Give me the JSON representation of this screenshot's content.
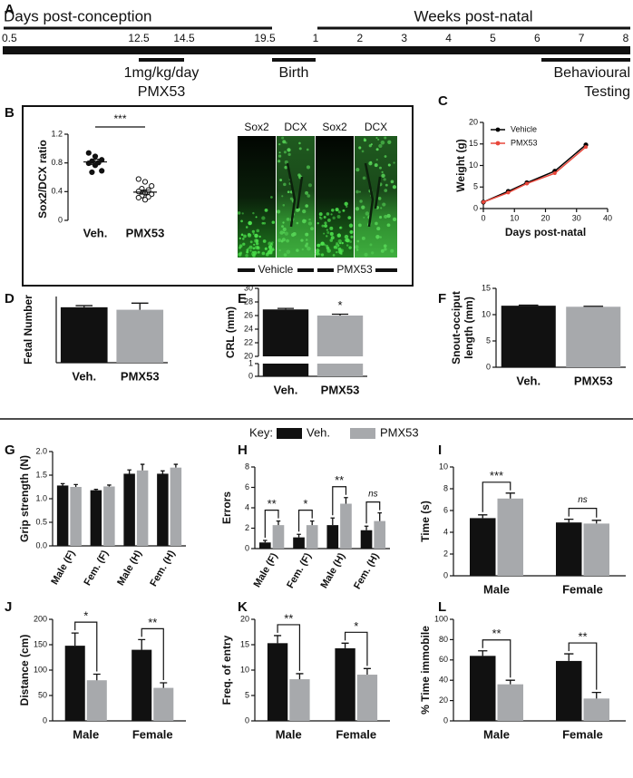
{
  "timeline": {
    "label": "A",
    "prenatal_title": "Days post-conception",
    "postnatal_title": "Weeks post-natal",
    "prenatal_ticks": [
      "0.5",
      "12.5",
      "14.5",
      "19.5"
    ],
    "postnatal_ticks": [
      "1",
      "2",
      "3",
      "4",
      "5",
      "6",
      "7",
      "8"
    ],
    "events": [
      {
        "lines": [
          "1mg/kg/day",
          "PMX53"
        ]
      },
      {
        "lines": [
          "Birth"
        ]
      },
      {
        "lines": [
          "Behavioural",
          "Testing"
        ]
      }
    ]
  },
  "micrographs": {
    "stains": [
      "Sox2",
      "DCX",
      "Sox2",
      "DCX"
    ],
    "groups": [
      "Vehicle",
      "PMX53"
    ]
  },
  "key": {
    "title": "Key:",
    "items": [
      {
        "name": "Veh.",
        "color": "#111111"
      },
      {
        "name": "PMX53",
        "color": "#a7a9ac"
      }
    ]
  },
  "chart_data": [
    {
      "type": "strip",
      "label": "B",
      "ylabel": "Sox2/DCX ratio",
      "categories": [
        "Veh.",
        "PMX53"
      ],
      "groups": [
        {
          "values": [
            0.98,
            0.93,
            0.88,
            0.86,
            0.84,
            0.83,
            0.8,
            0.72,
            0.7
          ],
          "mean": 0.85,
          "sem": 0.04,
          "marker": "filled"
        },
        {
          "values": [
            0.6,
            0.56,
            0.5,
            0.46,
            0.44,
            0.42,
            0.4,
            0.38,
            0.36,
            0.34,
            0.33,
            0.3
          ],
          "mean": 0.41,
          "sem": 0.03,
          "marker": "open"
        }
      ],
      "ylim": [
        0,
        1.2
      ],
      "yticks": [
        0,
        0.4,
        0.8,
        1.2
      ],
      "significance": "***"
    },
    {
      "type": "line",
      "label": "C",
      "xlabel": "Days post-natal",
      "ylabel": "Weight (g)",
      "x": [
        0,
        8,
        14,
        23,
        33
      ],
      "series": [
        {
          "name": "Vehicle",
          "color": "#000000",
          "values": [
            1.5,
            4.0,
            6.0,
            8.7,
            14.8
          ]
        },
        {
          "name": "PMX53",
          "color": "#e8473b",
          "values": [
            1.5,
            3.7,
            5.8,
            8.2,
            14.3
          ]
        }
      ],
      "xlim": [
        0,
        40
      ],
      "xticks": [
        0,
        10,
        20,
        30,
        40
      ],
      "ylim": [
        0,
        20
      ],
      "yticks": [
        0,
        5,
        10,
        15,
        20
      ],
      "legend": "top-left"
    },
    {
      "type": "bar",
      "label": "D",
      "ylabel": "Fetal Number",
      "categories": [
        "Veh.",
        "PMX53"
      ],
      "values": [
        6.7,
        6.4
      ],
      "errors": [
        0.2,
        0.8
      ],
      "colors": [
        "#111111",
        "#a7a9ac"
      ],
      "ylim": [
        0,
        8
      ]
    },
    {
      "type": "bar",
      "label": "E",
      "ylabel": "CRL (mm)",
      "categories": [
        "Veh.",
        "PMX53"
      ],
      "values": [
        26.9,
        26.0
      ],
      "errors": [
        0.15,
        0.2
      ],
      "colors": [
        "#111111",
        "#a7a9ac"
      ],
      "ylim": [
        20,
        30
      ],
      "yticks": [
        20,
        22,
        24,
        26,
        28,
        30
      ],
      "ylim_lower": [
        0,
        1
      ],
      "yticks_lower": [
        0,
        1
      ],
      "significance": "*"
    },
    {
      "type": "bar",
      "label": "F",
      "ylabel": [
        "Snout-occiput",
        "length (mm)"
      ],
      "categories": [
        "Veh.",
        "PMX53"
      ],
      "values": [
        11.7,
        11.5
      ],
      "errors": [
        0.1,
        0.1
      ],
      "colors": [
        "#111111",
        "#a7a9ac"
      ],
      "ylim": [
        0,
        15
      ],
      "yticks": [
        0,
        5,
        10,
        15
      ]
    },
    {
      "type": "grouped_bar",
      "label": "G",
      "ylabel": "Grip strength (N)",
      "categories": [
        "Male (F)",
        "Fem. (F)",
        "Male (H)",
        "Fem. (H)"
      ],
      "series": [
        {
          "values": [
            1.28,
            1.18,
            1.53,
            1.53
          ],
          "errors": [
            0.04,
            0.02,
            0.08,
            0.06
          ]
        },
        {
          "values": [
            1.25,
            1.26,
            1.6,
            1.66
          ],
          "errors": [
            0.05,
            0.03,
            0.13,
            0.07
          ]
        }
      ],
      "ylim": [
        0,
        2
      ],
      "yticks": [
        {
          "value": 0,
          "label": "0.0"
        },
        0.5,
        {
          "value": 1,
          "label": "1.0"
        },
        1.5,
        {
          "value": 2,
          "label": "2.0"
        }
      ]
    },
    {
      "type": "grouped_bar",
      "label": "H",
      "ylabel": "Errors",
      "categories": [
        "Male (F)",
        "Fem. (F)",
        "Male (H)",
        "Fem. (H)"
      ],
      "series": [
        {
          "values": [
            0.6,
            1.1,
            2.3,
            1.8
          ],
          "errors": [
            0.2,
            0.3,
            0.7,
            0.4
          ]
        },
        {
          "values": [
            2.3,
            2.3,
            4.4,
            2.7
          ],
          "errors": [
            0.4,
            0.4,
            0.6,
            0.8
          ]
        }
      ],
      "ylim": [
        0,
        8
      ],
      "yticks": [
        0,
        2,
        4,
        6,
        8
      ],
      "significance": [
        "**",
        "*",
        "**",
        "ns"
      ]
    },
    {
      "type": "grouped_bar",
      "label": "I",
      "ylabel": "Time (s)",
      "categories": [
        "Male",
        "Female"
      ],
      "series": [
        {
          "values": [
            5.3,
            4.9
          ],
          "errors": [
            0.3,
            0.3
          ]
        },
        {
          "values": [
            7.1,
            4.8
          ],
          "errors": [
            0.5,
            0.3
          ]
        }
      ],
      "ylim": [
        0,
        10
      ],
      "yticks": [
        0,
        2,
        4,
        6,
        8,
        10
      ],
      "significance": [
        "***",
        "ns"
      ]
    },
    {
      "type": "grouped_bar",
      "label": "J",
      "ylabel": "Distance (cm)",
      "categories": [
        "Male",
        "Female"
      ],
      "series": [
        {
          "values": [
            148,
            140
          ],
          "errors": [
            25,
            20
          ]
        },
        {
          "values": [
            80,
            65
          ],
          "errors": [
            12,
            10
          ]
        }
      ],
      "ylim": [
        0,
        200
      ],
      "yticks": [
        0,
        50,
        100,
        150,
        200
      ],
      "significance": [
        "*",
        "**"
      ]
    },
    {
      "type": "grouped_bar",
      "label": "K",
      "ylabel": "Freq. of entry",
      "categories": [
        "Male",
        "Female"
      ],
      "series": [
        {
          "values": [
            15.3,
            14.3
          ],
          "errors": [
            1.5,
            1.0
          ]
        },
        {
          "values": [
            8.2,
            9.1
          ],
          "errors": [
            1.1,
            1.2
          ]
        }
      ],
      "ylim": [
        0,
        20
      ],
      "yticks": [
        0,
        5,
        10,
        15,
        20
      ],
      "significance": [
        "**",
        "*"
      ]
    },
    {
      "type": "grouped_bar",
      "label": "L",
      "ylabel": "% Time immobile",
      "categories": [
        "Male",
        "Female"
      ],
      "series": [
        {
          "values": [
            64,
            59
          ],
          "errors": [
            5,
            7
          ]
        },
        {
          "values": [
            36,
            22
          ],
          "errors": [
            4,
            6
          ]
        }
      ],
      "ylim": [
        0,
        100
      ],
      "yticks": [
        0,
        20,
        40,
        60,
        80,
        100
      ],
      "significance": [
        "**",
        "**"
      ]
    }
  ]
}
